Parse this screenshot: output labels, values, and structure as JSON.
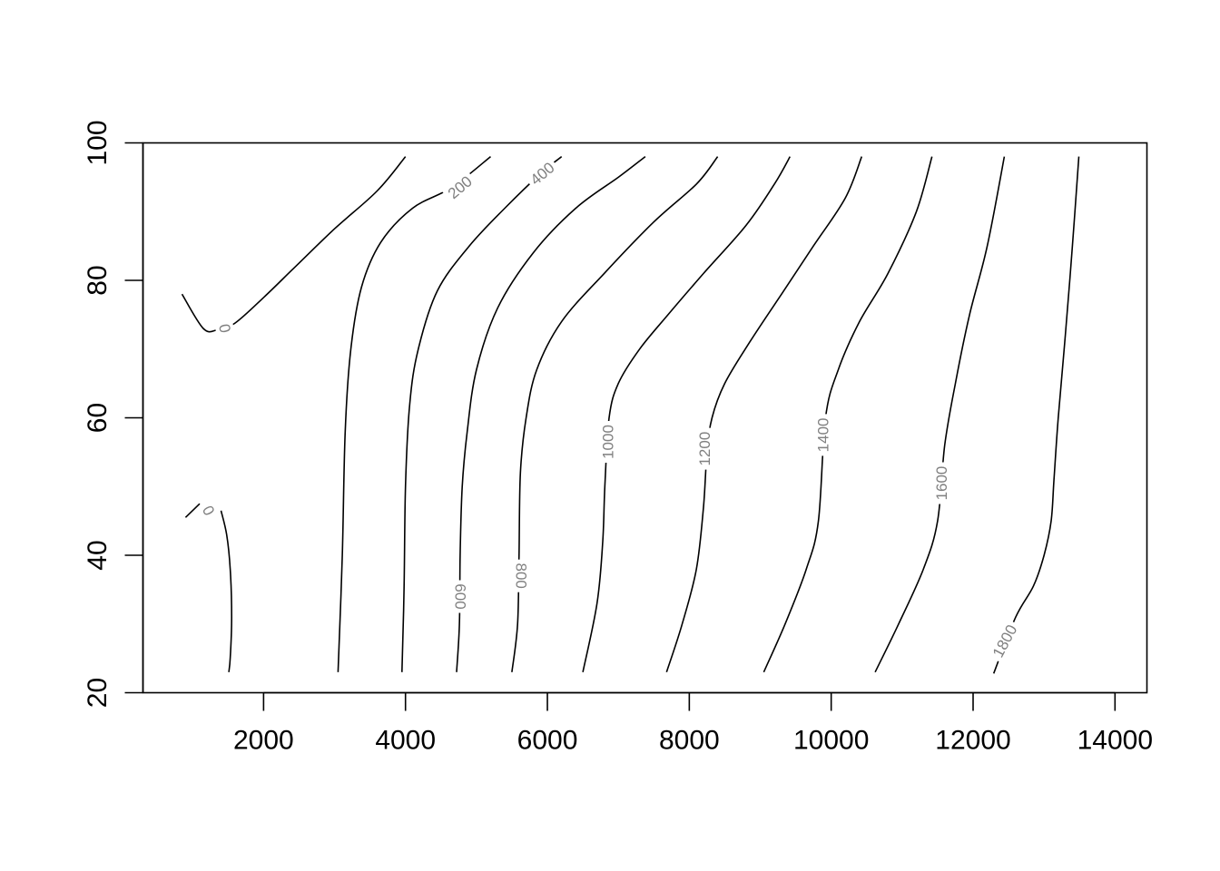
{
  "chart_data": {
    "type": "contour",
    "title": "",
    "xlabel": "",
    "ylabel": "",
    "xlim": [
      300,
      14450
    ],
    "ylim": [
      20,
      100
    ],
    "x_ticks": [
      2000,
      4000,
      6000,
      8000,
      10000,
      12000,
      14000
    ],
    "y_ticks": [
      20,
      40,
      60,
      80,
      100
    ],
    "x_tick_labels": [
      "2000",
      "4000",
      "6000",
      "8000",
      "10000",
      "12000",
      "14000"
    ],
    "y_tick_labels": [
      "20",
      "40",
      "60",
      "80",
      "100"
    ],
    "box": true,
    "grid": false,
    "contours": [
      {
        "level": "0",
        "label": "0",
        "label_at": [
          1450,
          73
        ],
        "label_angle": 78,
        "points": [
          [
            850,
            78
          ],
          [
            1150,
            73
          ],
          [
            1350,
            72.8
          ],
          [
            1600,
            73.8
          ],
          [
            2000,
            77.5
          ],
          [
            2400,
            81.5
          ],
          [
            3000,
            87.5
          ],
          [
            3600,
            93
          ],
          [
            4000,
            98
          ]
        ]
      },
      {
        "level": "0",
        "label": "0",
        "label_at": [
          1220,
          46.5
        ],
        "label_angle": 62,
        "points": [
          [
            900,
            45.5
          ],
          [
            1100,
            47.5
          ]
        ]
      },
      {
        "level": "0",
        "label": "",
        "label_at": null,
        "label_angle": 0,
        "points": [
          [
            1400,
            46.5
          ],
          [
            1480,
            43
          ],
          [
            1530,
            38
          ],
          [
            1550,
            31
          ],
          [
            1530,
            25
          ],
          [
            1510,
            23
          ]
        ]
      },
      {
        "level": "200",
        "label": "200",
        "label_at": [
          4770,
          93.5
        ],
        "label_angle": -40,
        "points": [
          [
            3050,
            23
          ],
          [
            3110,
            40
          ],
          [
            3150,
            58
          ],
          [
            3230,
            70
          ],
          [
            3380,
            79
          ],
          [
            3650,
            85.5
          ],
          [
            4100,
            90.5
          ],
          [
            4650,
            93.5
          ],
          [
            5200,
            98
          ]
        ]
      },
      {
        "level": "400",
        "label": "400",
        "label_at": [
          5930,
          95.5
        ],
        "label_angle": -40,
        "points": [
          [
            3950,
            23
          ],
          [
            3980,
            35
          ],
          [
            4000,
            50
          ],
          [
            4060,
            62
          ],
          [
            4180,
            70
          ],
          [
            4450,
            78.5
          ],
          [
            4900,
            85
          ],
          [
            5400,
            90.5
          ],
          [
            5900,
            95.5
          ],
          [
            6200,
            98
          ]
        ]
      },
      {
        "level": "600",
        "label": "600",
        "label_at": [
          4770,
          34
        ],
        "label_angle": 90,
        "points": [
          [
            4720,
            23
          ],
          [
            4760,
            30
          ],
          [
            4770,
            40
          ],
          [
            4800,
            50
          ],
          [
            4870,
            58
          ],
          [
            5000,
            67
          ],
          [
            5300,
            76
          ],
          [
            5800,
            84
          ],
          [
            6400,
            90.5
          ],
          [
            7000,
            95
          ],
          [
            7380,
            98
          ]
        ]
      },
      {
        "level": "800",
        "label": "800",
        "label_at": [
          5630,
          37
        ],
        "label_angle": 90,
        "points": [
          [
            5500,
            23
          ],
          [
            5580,
            30
          ],
          [
            5600,
            40
          ],
          [
            5620,
            52
          ],
          [
            5700,
            60
          ],
          [
            5850,
            67
          ],
          [
            6200,
            74
          ],
          [
            6800,
            81
          ],
          [
            7500,
            88.5
          ],
          [
            8100,
            94
          ],
          [
            8400,
            98
          ]
        ]
      },
      {
        "level": "1000",
        "label": "1000",
        "label_at": [
          6860,
          56.5
        ],
        "label_angle": -90,
        "points": [
          [
            6500,
            23
          ],
          [
            6700,
            33
          ],
          [
            6780,
            42
          ],
          [
            6810,
            50
          ],
          [
            6870,
            60
          ],
          [
            7000,
            65
          ],
          [
            7300,
            70
          ],
          [
            7700,
            75
          ],
          [
            8200,
            81
          ],
          [
            8800,
            88
          ],
          [
            9200,
            94
          ],
          [
            9420,
            98
          ]
        ]
      },
      {
        "level": "1200",
        "label": "1200",
        "label_at": [
          8220,
          55.5
        ],
        "label_angle": -90,
        "points": [
          [
            7680,
            23
          ],
          [
            7900,
            30
          ],
          [
            8100,
            38
          ],
          [
            8200,
            47
          ],
          [
            8250,
            55
          ],
          [
            8320,
            60
          ],
          [
            8500,
            65
          ],
          [
            8850,
            71
          ],
          [
            9300,
            78
          ],
          [
            9750,
            85
          ],
          [
            10200,
            92
          ],
          [
            10430,
            98
          ]
        ]
      },
      {
        "level": "1400",
        "label": "1400",
        "label_at": [
          9890,
          57.5
        ],
        "label_angle": -90,
        "points": [
          [
            9050,
            23
          ],
          [
            9350,
            30
          ],
          [
            9650,
            38
          ],
          [
            9820,
            45
          ],
          [
            9920,
            60
          ],
          [
            10100,
            67
          ],
          [
            10400,
            74
          ],
          [
            10800,
            81
          ],
          [
            11200,
            90
          ],
          [
            11420,
            98
          ]
        ]
      },
      {
        "level": "1600",
        "label": "1600",
        "label_at": [
          11560,
          50.5
        ],
        "label_angle": -90,
        "points": [
          [
            10620,
            23
          ],
          [
            10950,
            30
          ],
          [
            11300,
            38
          ],
          [
            11500,
            45
          ],
          [
            11600,
            56
          ],
          [
            11750,
            65
          ],
          [
            11950,
            75
          ],
          [
            12200,
            85
          ],
          [
            12440,
            98
          ]
        ]
      },
      {
        "level": "1800",
        "label": "1800",
        "label_at": [
          12450,
          27.5
        ],
        "label_angle": -62,
        "points": [
          [
            12290,
            22.8
          ],
          [
            12600,
            31
          ],
          [
            12850,
            35.5
          ],
          [
            13000,
            40
          ],
          [
            13100,
            45
          ],
          [
            13140,
            51
          ],
          [
            13200,
            60
          ],
          [
            13300,
            72
          ],
          [
            13400,
            85
          ],
          [
            13490,
            98
          ]
        ]
      }
    ]
  }
}
